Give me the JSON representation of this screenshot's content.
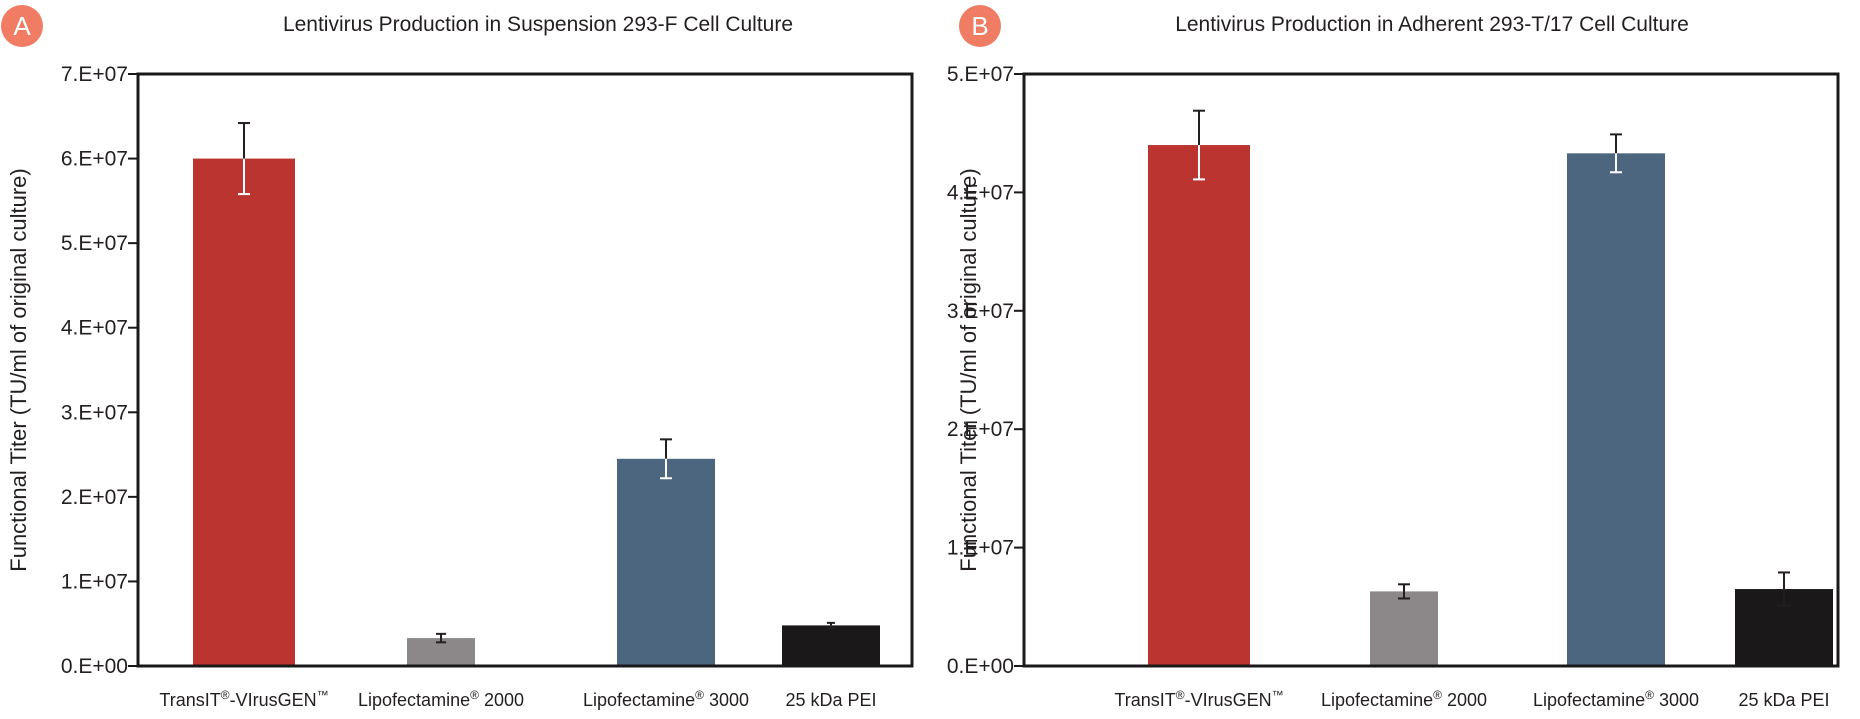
{
  "colors": {
    "badge": "#f07c64",
    "transit": "#bc3430",
    "lipo2000": "#8c8788",
    "lipo3000": "#4c6680",
    "pei": "#1a1818",
    "frame": "#1a1818"
  },
  "chart_data": [
    {
      "type": "bar",
      "panel_label": "A",
      "title": "Lentivirus Production in Suspension 293-F Cell Culture",
      "ylabel": "Functional  Titer (TU/ml of original culture)",
      "xlabel": "",
      "ylim": [
        0,
        70000000
      ],
      "yticks": [
        {
          "value": 0,
          "label": "0.E+00"
        },
        {
          "value": 10000000,
          "label": "1.E+07"
        },
        {
          "value": 20000000,
          "label": "2.E+07"
        },
        {
          "value": 30000000,
          "label": "3.E+07"
        },
        {
          "value": 40000000,
          "label": "4.E+07"
        },
        {
          "value": 50000000,
          "label": "5.E+07"
        },
        {
          "value": 60000000,
          "label": "6.E+07"
        },
        {
          "value": 70000000,
          "label": "7.E+07"
        }
      ],
      "categories": [
        {
          "base": "TransIT",
          "sup1": "®",
          "rest": "-VIrusGEN",
          "sup2": "™"
        },
        {
          "base": "Lipofectamine",
          "sup1": "®",
          "rest": " 2000",
          "sup2": ""
        },
        {
          "base": "Lipofectamine",
          "sup1": "®",
          "rest": " 3000",
          "sup2": ""
        },
        {
          "base": "25 kDa PEI",
          "sup1": "",
          "rest": "",
          "sup2": ""
        }
      ],
      "values": [
        60000000,
        3300000,
        24500000,
        4800000
      ],
      "errors": [
        4200000,
        500000,
        2300000,
        300000
      ],
      "bar_colors": [
        "#bc3430",
        "#8c8788",
        "#4c6680",
        "#1a1818"
      ],
      "grid": false,
      "legend": "none"
    },
    {
      "type": "bar",
      "panel_label": "B",
      "title": "Lentivirus Production in Adherent 293-T/17 Cell Culture",
      "ylabel": "Functional  Titer (TU/ml of original culture)",
      "xlabel": "",
      "ylim": [
        0,
        50000000
      ],
      "yticks": [
        {
          "value": 0,
          "label": "0.E+00"
        },
        {
          "value": 10000000,
          "label": "1.E+07"
        },
        {
          "value": 20000000,
          "label": "2.E+07"
        },
        {
          "value": 30000000,
          "label": "3.E+07"
        },
        {
          "value": 40000000,
          "label": "4.E+07"
        },
        {
          "value": 50000000,
          "label": "5.E+07"
        }
      ],
      "categories": [
        {
          "base": "TransIT",
          "sup1": "®",
          "rest": "-VIrusGEN",
          "sup2": "™"
        },
        {
          "base": "Lipofectamine",
          "sup1": "®",
          "rest": " 2000",
          "sup2": ""
        },
        {
          "base": "Lipofectamine",
          "sup1": "®",
          "rest": " 3000",
          "sup2": ""
        },
        {
          "base": "25 kDa PEI",
          "sup1": "",
          "rest": "",
          "sup2": ""
        }
      ],
      "values": [
        44000000,
        6300000,
        43300000,
        6500000
      ],
      "errors": [
        2900000,
        600000,
        1600000,
        1400000
      ],
      "bar_colors": [
        "#bc3430",
        "#8c8788",
        "#4c6680",
        "#1a1818"
      ],
      "grid": false,
      "legend": "none"
    }
  ]
}
